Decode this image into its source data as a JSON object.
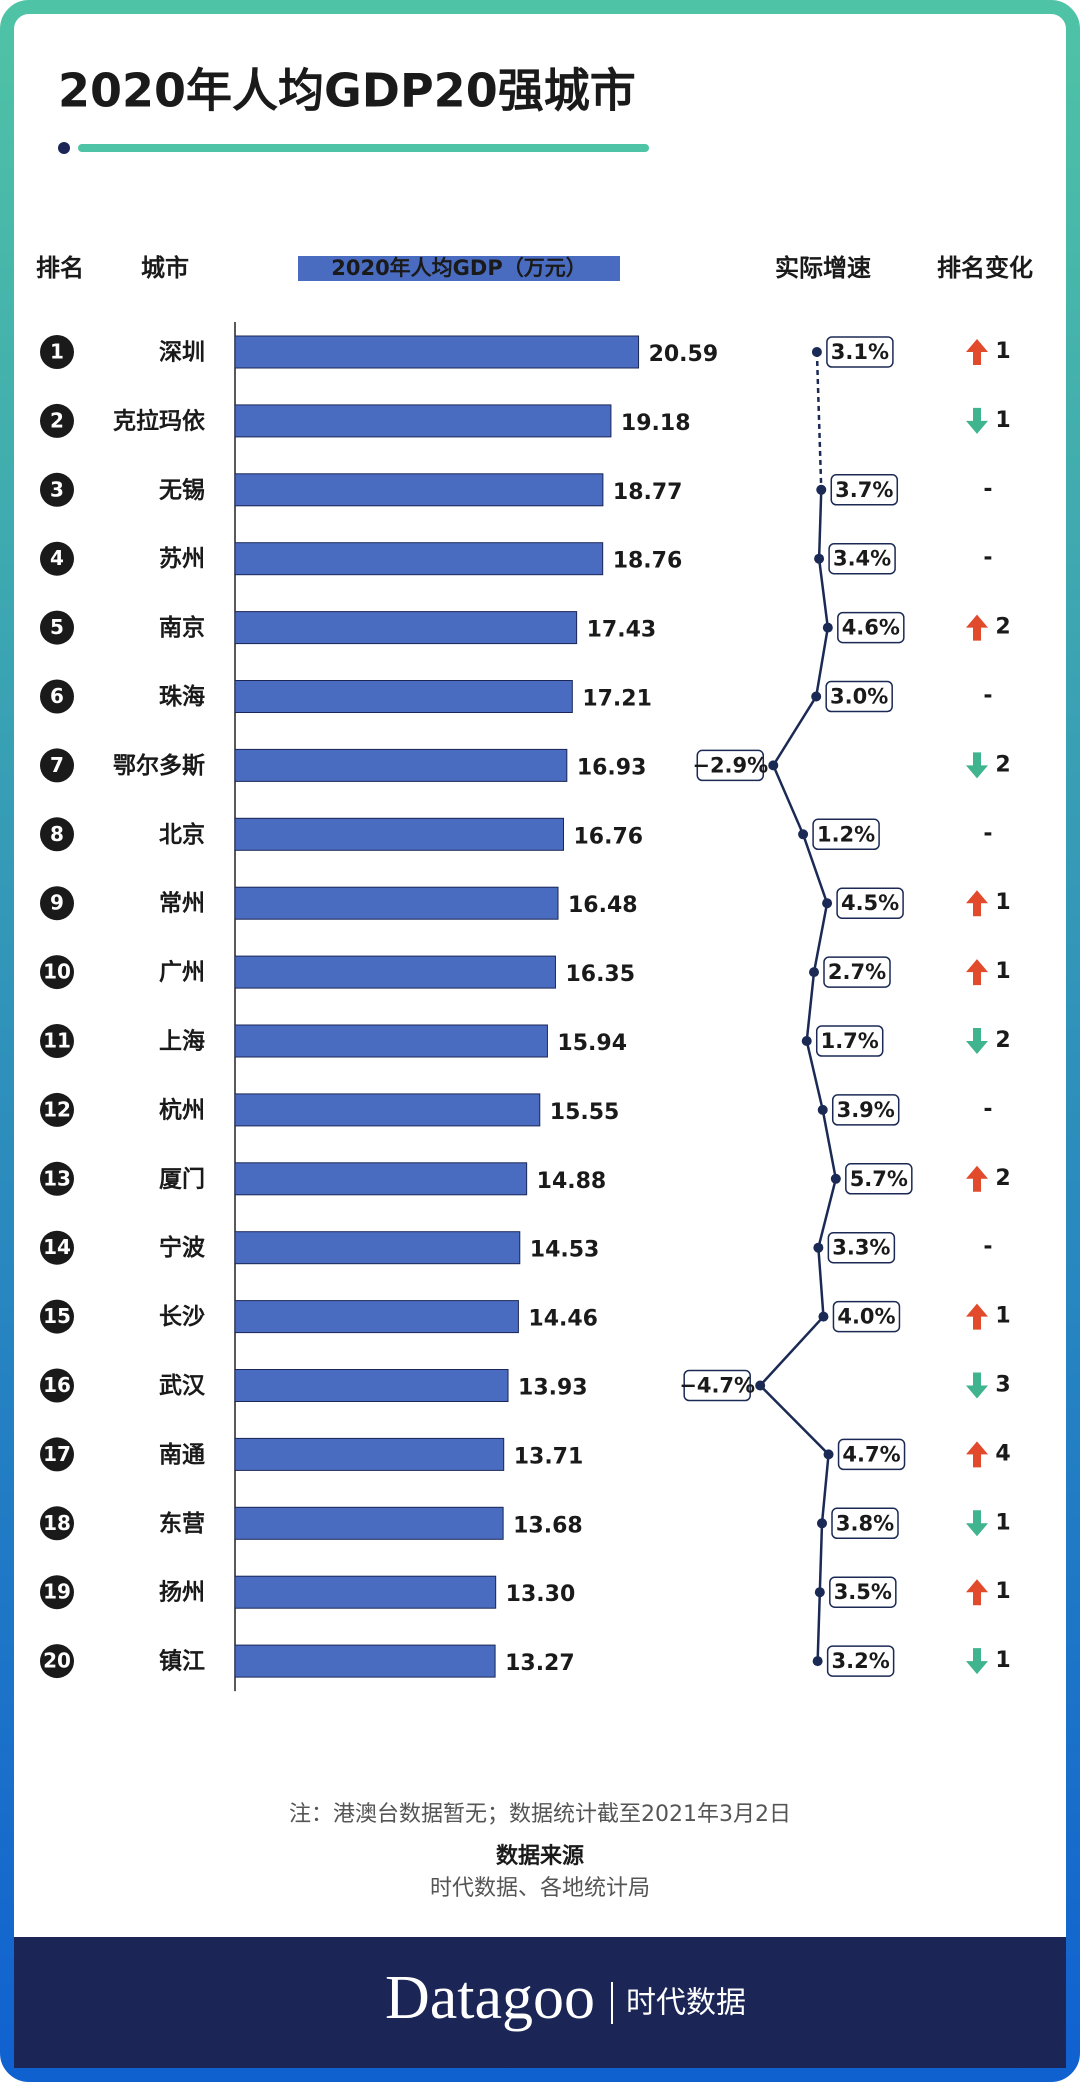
{
  "chart_data": {
    "type": "bar",
    "title": "2020年人均GDP20强城市",
    "headers": {
      "rank": "排名",
      "city": "城市",
      "gdp": "2020年人均GDP（万元）",
      "growth": "实际增速",
      "change": "排名变化"
    },
    "ranks": [
      1,
      2,
      3,
      4,
      5,
      6,
      7,
      8,
      9,
      10,
      11,
      12,
      13,
      14,
      15,
      16,
      17,
      18,
      19,
      20
    ],
    "categories": [
      "深圳",
      "克拉玛依",
      "无锡",
      "苏州",
      "南京",
      "珠海",
      "鄂尔多斯",
      "北京",
      "常州",
      "广州",
      "上海",
      "杭州",
      "厦门",
      "宁波",
      "长沙",
      "武汉",
      "南通",
      "东营",
      "扬州",
      "镇江"
    ],
    "values": [
      20.59,
      19.18,
      18.77,
      18.76,
      17.43,
      17.21,
      16.93,
      16.76,
      16.48,
      16.35,
      15.94,
      15.55,
      14.88,
      14.53,
      14.46,
      13.93,
      13.71,
      13.68,
      13.3,
      13.27
    ],
    "value_labels": [
      "20.59",
      "19.18",
      "18.77",
      "18.76",
      "17.43",
      "17.21",
      "16.93",
      "16.76",
      "16.48",
      "16.35",
      "15.94",
      "15.55",
      "14.88",
      "14.53",
      "14.46",
      "13.93",
      "13.71",
      "13.68",
      "13.30",
      "13.27"
    ],
    "color": "#4a6cc0",
    "xlim": [
      0,
      22
    ],
    "growth": {
      "type": "line",
      "color": "#1b2a55",
      "xlim": [
        -5,
        6
      ],
      "values": [
        3.1,
        null,
        3.7,
        3.4,
        4.6,
        3.0,
        -2.9,
        1.2,
        4.5,
        2.7,
        1.7,
        3.9,
        5.7,
        3.3,
        4.0,
        -4.7,
        4.7,
        3.8,
        3.5,
        3.2
      ],
      "value_labels": [
        "3.1%",
        null,
        "3.7%",
        "3.4%",
        "4.6%",
        "3.0%",
        "−2.9%",
        "1.2%",
        "4.5%",
        "2.7%",
        "1.7%",
        "3.9%",
        "5.7%",
        "3.3%",
        "4.0%",
        "−4.7%",
        "4.7%",
        "3.8%",
        "3.5%",
        "3.2%"
      ]
    },
    "change": {
      "up_color": "#e24a2c",
      "down_color": "#3fb48f",
      "values": [
        1,
        -1,
        0,
        0,
        2,
        0,
        -2,
        0,
        1,
        1,
        -2,
        0,
        2,
        0,
        1,
        -3,
        4,
        -1,
        1,
        -1
      ],
      "value_labels": [
        "1",
        "1",
        "-",
        "-",
        "2",
        "-",
        "2",
        "-",
        "1",
        "1",
        "2",
        "-",
        "2",
        "-",
        "1",
        "3",
        "4",
        "1",
        "1",
        "1"
      ]
    },
    "note": "注：港澳台数据暂无；数据统计截至2021年3月2日",
    "source_title": "数据来源",
    "source": "时代数据、各地统计局",
    "brand": "Datagoo",
    "brand_cn": "时代数据"
  }
}
